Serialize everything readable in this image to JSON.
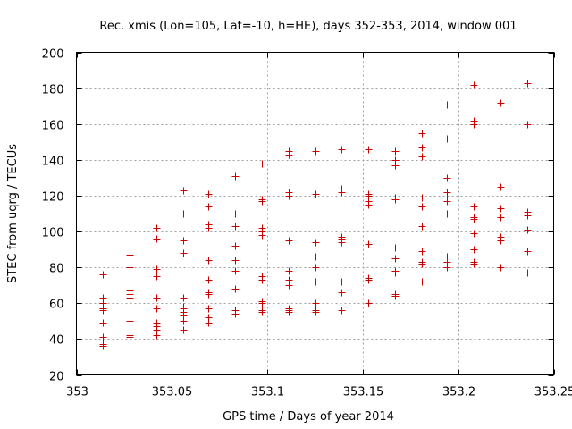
{
  "chart_data": {
    "type": "scatter",
    "title": "Rec. xmis (Lon=105, Lat=-10, h=HE), days 352-353, 2014, window 001",
    "xlabel": "GPS time / Days of year 2014",
    "ylabel": "STEC from uqrg / TECUs",
    "xlim": [
      353,
      353.25
    ],
    "ylim": [
      20,
      200
    ],
    "xticks": [
      353,
      353.05,
      353.1,
      353.15,
      353.2,
      353.25
    ],
    "xtick_labels": [
      "353",
      "353.05",
      "353.1",
      "353.15",
      "353.2",
      "353.25"
    ],
    "yticks": [
      20,
      40,
      60,
      80,
      100,
      120,
      140,
      160,
      180,
      200
    ],
    "ytick_labels": [
      "20",
      "40",
      "60",
      "80",
      "100",
      "120",
      "140",
      "160",
      "180",
      "200"
    ],
    "grid": true,
    "marker": "+",
    "color": "#cc0000",
    "x": [
      353.014,
      353.014,
      353.014,
      353.014,
      353.014,
      353.014,
      353.014,
      353.014,
      353.014,
      353.014,
      353.014,
      353.028,
      353.028,
      353.028,
      353.028,
      353.028,
      353.028,
      353.028,
      353.028,
      353.028,
      353.042,
      353.042,
      353.042,
      353.042,
      353.042,
      353.042,
      353.042,
      353.042,
      353.042,
      353.042,
      353.042,
      353.042,
      353.056,
      353.056,
      353.056,
      353.056,
      353.056,
      353.056,
      353.056,
      353.056,
      353.056,
      353.056,
      353.056,
      353.069,
      353.069,
      353.069,
      353.069,
      353.069,
      353.069,
      353.069,
      353.069,
      353.069,
      353.069,
      353.069,
      353.083,
      353.083,
      353.083,
      353.083,
      353.083,
      353.083,
      353.083,
      353.083,
      353.083,
      353.097,
      353.097,
      353.097,
      353.097,
      353.097,
      353.097,
      353.097,
      353.097,
      353.097,
      353.097,
      353.097,
      353.097,
      353.111,
      353.111,
      353.111,
      353.111,
      353.111,
      353.111,
      353.111,
      353.111,
      353.111,
      353.111,
      353.111,
      353.125,
      353.125,
      353.125,
      353.125,
      353.125,
      353.125,
      353.125,
      353.125,
      353.125,
      353.139,
      353.139,
      353.139,
      353.139,
      353.139,
      353.139,
      353.139,
      353.139,
      353.139,
      353.153,
      353.153,
      353.153,
      353.153,
      353.153,
      353.153,
      353.153,
      353.153,
      353.153,
      353.153,
      353.167,
      353.167,
      353.167,
      353.167,
      353.167,
      353.167,
      353.167,
      353.167,
      353.167,
      353.167,
      353.167,
      353.181,
      353.181,
      353.181,
      353.181,
      353.181,
      353.181,
      353.181,
      353.181,
      353.181,
      353.181,
      353.181,
      353.194,
      353.194,
      353.194,
      353.194,
      353.194,
      353.194,
      353.194,
      353.194,
      353.194,
      353.194,
      353.208,
      353.208,
      353.208,
      353.208,
      353.208,
      353.208,
      353.208,
      353.208,
      353.208,
      353.208,
      353.222,
      353.222,
      353.222,
      353.222,
      353.222,
      353.222,
      353.222,
      353.222,
      353.236,
      353.236,
      353.236,
      353.236,
      353.236,
      353.236,
      353.236,
      353.236
    ],
    "y": [
      76,
      63,
      60,
      58,
      57,
      56,
      49,
      41,
      37,
      37,
      36,
      87,
      80,
      67,
      65,
      63,
      58,
      50,
      42,
      41,
      102,
      96,
      79,
      77,
      75,
      63,
      57,
      49,
      47,
      45,
      44,
      42,
      123,
      110,
      95,
      88,
      63,
      58,
      57,
      55,
      53,
      50,
      45,
      121,
      114,
      104,
      102,
      84,
      73,
      66,
      65,
      57,
      52,
      49,
      131,
      110,
      103,
      92,
      84,
      78,
      68,
      56,
      54,
      138,
      118,
      117,
      102,
      100,
      98,
      75,
      73,
      61,
      60,
      56,
      55,
      145,
      143,
      122,
      120,
      95,
      78,
      73,
      70,
      57,
      56,
      55,
      145,
      121,
      94,
      86,
      80,
      72,
      60,
      56,
      55,
      146,
      124,
      122,
      97,
      96,
      94,
      72,
      66,
      56,
      146,
      121,
      120,
      117,
      115,
      93,
      74,
      73,
      60,
      60,
      145,
      140,
      137,
      119,
      118,
      91,
      85,
      78,
      77,
      65,
      64,
      155,
      147,
      142,
      119,
      114,
      103,
      89,
      83,
      82,
      72,
      72,
      171,
      152,
      130,
      122,
      119,
      117,
      110,
      86,
      83,
      80,
      182,
      162,
      160,
      114,
      108,
      107,
      99,
      90,
      83,
      82,
      172,
      125,
      113,
      108,
      97,
      95,
      80,
      80,
      183,
      160,
      111,
      109,
      101,
      89,
      77,
      77
    ]
  }
}
